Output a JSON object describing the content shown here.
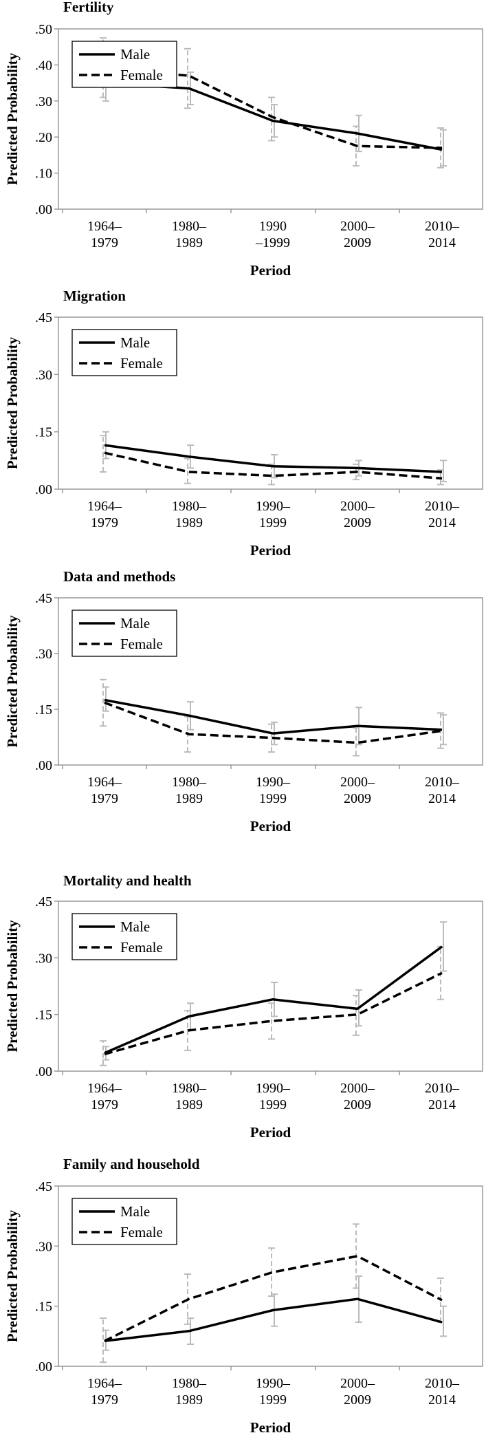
{
  "chart_data": [
    {
      "type": "line",
      "title": "Fertility",
      "xlabel": "Period",
      "ylabel": "Predicted Probability",
      "ylim": [
        0,
        0.5
      ],
      "yticks": [
        ".00",
        ".10",
        ".20",
        ".30",
        ".40",
        ".50"
      ],
      "ytick_values": [
        0,
        0.1,
        0.2,
        0.3,
        0.4,
        0.5
      ],
      "categories": [
        [
          "1964–",
          "1979"
        ],
        [
          "1980–",
          "1989"
        ],
        [
          "1990",
          "–1999"
        ],
        [
          "2000–",
          "2009"
        ],
        [
          "2010–",
          "2014"
        ]
      ],
      "legend": "top-left",
      "grid": false,
      "series": [
        {
          "name": "Male",
          "style": "solid",
          "values": [
            0.35,
            0.335,
            0.245,
            0.21,
            0.165
          ],
          "err": [
            [
              0.3,
              0.4
            ],
            [
              0.29,
              0.38
            ],
            [
              0.2,
              0.29
            ],
            [
              0.16,
              0.26
            ],
            [
              0.12,
              0.22
            ]
          ]
        },
        {
          "name": "Female",
          "style": "dashed",
          "values": [
            0.39,
            0.37,
            0.255,
            0.175,
            0.17
          ],
          "err": [
            [
              0.31,
              0.475
            ],
            [
              0.28,
              0.445
            ],
            [
              0.19,
              0.31
            ],
            [
              0.12,
              0.23
            ],
            [
              0.115,
              0.225
            ]
          ]
        }
      ]
    },
    {
      "type": "line",
      "title": "Migration",
      "xlabel": "Period",
      "ylabel": "Predicted Probability",
      "ylim": [
        0,
        0.45
      ],
      "yticks": [
        ".00",
        ".15",
        ".30",
        ".45"
      ],
      "ytick_values": [
        0,
        0.15,
        0.3,
        0.45
      ],
      "categories": [
        [
          "1964–",
          "1979"
        ],
        [
          "1980–",
          "1989"
        ],
        [
          "1990–",
          "1999"
        ],
        [
          "2000–",
          "2009"
        ],
        [
          "2010–",
          "2014"
        ]
      ],
      "legend": "top-left",
      "grid": false,
      "series": [
        {
          "name": "Male",
          "style": "solid",
          "values": [
            0.115,
            0.085,
            0.06,
            0.055,
            0.045
          ],
          "err": [
            [
              0.08,
              0.15
            ],
            [
              0.055,
              0.115
            ],
            [
              0.03,
              0.09
            ],
            [
              0.035,
              0.075
            ],
            [
              0.02,
              0.075
            ]
          ]
        },
        {
          "name": "Female",
          "style": "dashed",
          "values": [
            0.095,
            0.045,
            0.035,
            0.045,
            0.028
          ],
          "err": [
            [
              0.045,
              0.14
            ],
            [
              0.015,
              0.08
            ],
            [
              0.012,
              0.065
            ],
            [
              0.025,
              0.065
            ],
            [
              0.012,
              0.05
            ]
          ]
        }
      ]
    },
    {
      "type": "line",
      "title": "Data and methods",
      "xlabel": "Period",
      "ylabel": "Predicted Probability",
      "ylim": [
        0,
        0.45
      ],
      "yticks": [
        ".00",
        ".15",
        ".30",
        ".45"
      ],
      "ytick_values": [
        0,
        0.15,
        0.3,
        0.45
      ],
      "categories": [
        [
          "1964–",
          "1979"
        ],
        [
          "1980–",
          "1989"
        ],
        [
          "1990–",
          "1999"
        ],
        [
          "2000–",
          "2009"
        ],
        [
          "2010–",
          "2014"
        ]
      ],
      "legend": "top-left",
      "grid": false,
      "series": [
        {
          "name": "Male",
          "style": "solid",
          "values": [
            0.175,
            0.133,
            0.085,
            0.105,
            0.095
          ],
          "err": [
            [
              0.145,
              0.21
            ],
            [
              0.095,
              0.17
            ],
            [
              0.055,
              0.115
            ],
            [
              0.055,
              0.155
            ],
            [
              0.055,
              0.135
            ]
          ]
        },
        {
          "name": "Female",
          "style": "dashed",
          "values": [
            0.168,
            0.083,
            0.073,
            0.06,
            0.092
          ],
          "err": [
            [
              0.105,
              0.23
            ],
            [
              0.035,
              0.13
            ],
            [
              0.035,
              0.11
            ],
            [
              0.025,
              0.1
            ],
            [
              0.045,
              0.14
            ]
          ]
        }
      ]
    },
    {
      "type": "line",
      "title": "Mortality and health",
      "xlabel": "Period",
      "ylabel": "Predicted Probability",
      "ylim": [
        0,
        0.45
      ],
      "yticks": [
        ".00",
        ".15",
        ".30",
        ".45"
      ],
      "ytick_values": [
        0,
        0.15,
        0.3,
        0.45
      ],
      "categories": [
        [
          "1964–",
          "1979"
        ],
        [
          "1980–",
          "1989"
        ],
        [
          "1990–",
          "1999"
        ],
        [
          "2000–",
          "2009"
        ],
        [
          "2010–",
          "2014"
        ]
      ],
      "legend": "top-left",
      "grid": false,
      "series": [
        {
          "name": "Male",
          "style": "solid",
          "values": [
            0.048,
            0.145,
            0.19,
            0.165,
            0.33
          ],
          "err": [
            [
              0.03,
              0.065
            ],
            [
              0.11,
              0.18
            ],
            [
              0.145,
              0.235
            ],
            [
              0.12,
              0.215
            ],
            [
              0.265,
              0.395
            ]
          ]
        },
        {
          "name": "Female",
          "style": "dashed",
          "values": [
            0.045,
            0.108,
            0.133,
            0.15,
            0.26
          ],
          "err": [
            [
              0.015,
              0.08
            ],
            [
              0.055,
              0.16
            ],
            [
              0.085,
              0.18
            ],
            [
              0.095,
              0.2
            ],
            [
              0.19,
              0.33
            ]
          ]
        }
      ]
    },
    {
      "type": "line",
      "title": "Family and household",
      "xlabel": "Period",
      "ylabel": "Predicted Probability",
      "ylim": [
        0,
        0.45
      ],
      "yticks": [
        ".00",
        ".15",
        ".30",
        ".45"
      ],
      "ytick_values": [
        0,
        0.15,
        0.3,
        0.45
      ],
      "categories": [
        [
          "1964–",
          "1979"
        ],
        [
          "1980–",
          "1989"
        ],
        [
          "1990–",
          "1999"
        ],
        [
          "2000–",
          "2009"
        ],
        [
          "2010–",
          "2014"
        ]
      ],
      "legend": "top-left",
      "grid": false,
      "series": [
        {
          "name": "Male",
          "style": "solid",
          "values": [
            0.063,
            0.088,
            0.14,
            0.168,
            0.11
          ],
          "err": [
            [
              0.04,
              0.09
            ],
            [
              0.055,
              0.12
            ],
            [
              0.1,
              0.18
            ],
            [
              0.11,
              0.225
            ],
            [
              0.075,
              0.15
            ]
          ]
        },
        {
          "name": "Female",
          "style": "dashed",
          "values": [
            0.063,
            0.168,
            0.235,
            0.275,
            0.165
          ],
          "err": [
            [
              0.01,
              0.12
            ],
            [
              0.105,
              0.23
            ],
            [
              0.175,
              0.295
            ],
            [
              0.195,
              0.355
            ],
            [
              0.11,
              0.22
            ]
          ]
        }
      ]
    }
  ],
  "colors": {
    "line": "#000000",
    "errorbar": "#bbbbbb",
    "frame": "#999999"
  }
}
